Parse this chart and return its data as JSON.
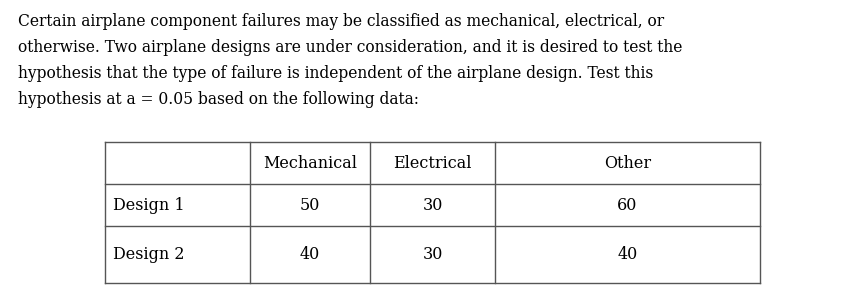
{
  "lines": [
    "Certain airplane component failures may be classified as mechanical, electrical, or",
    "otherwise. Two airplane designs are under consideration, and it is desired to test the",
    "hypothesis that the type of failure is independent of the airplane design. Test this",
    "hypothesis at a = 0.05 based on the following data:"
  ],
  "col_headers": [
    "",
    "Mechanical",
    "Electrical",
    "Other"
  ],
  "rows": [
    [
      "Design 1",
      "50",
      "30",
      "60"
    ],
    [
      "Design 2",
      "40",
      "30",
      "40"
    ]
  ],
  "bg_color": "#ffffff",
  "text_color": "#000000",
  "font_size_para": 11.2,
  "font_size_table": 11.5,
  "line_color": "#555555",
  "line_width": 1.0
}
